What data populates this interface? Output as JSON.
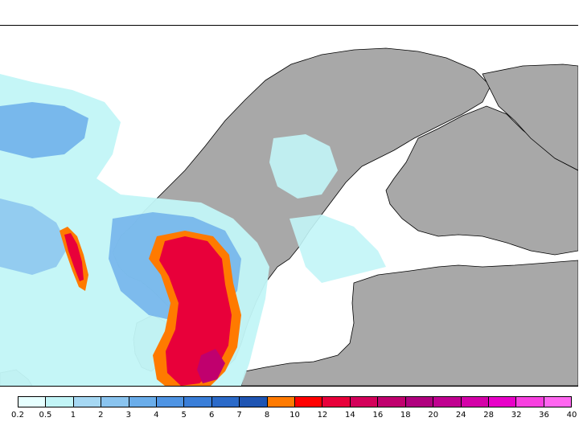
{
  "map": {
    "land_color": "#a8a8a8",
    "sea_color": "#ffffff",
    "border_color": "#000000",
    "features": [
      "scandinavian-peninsula",
      "finland",
      "baltic-sea",
      "gulf-of-bothnia",
      "denmark",
      "baltic-states"
    ]
  },
  "legend": {
    "colors": [
      "#e6ffff",
      "#c2f5f7",
      "#a6d8f3",
      "#8ac4ef",
      "#6aadea",
      "#4f94e3",
      "#3a7ed8",
      "#2b6ac9",
      "#1f55b3",
      "#ff7a00",
      "#ff0000",
      "#e8003a",
      "#d4005a",
      "#c0006e",
      "#b0007e",
      "#c00090",
      "#d400a8",
      "#e800c8",
      "#f840e0",
      "#ff66f0"
    ],
    "labels": [
      "0.2",
      "0.5",
      "1",
      "2",
      "3",
      "4",
      "5",
      "6",
      "7",
      "8",
      "10",
      "12",
      "14",
      "16",
      "18",
      "20",
      "24",
      "28",
      "32",
      "36",
      "40"
    ]
  }
}
